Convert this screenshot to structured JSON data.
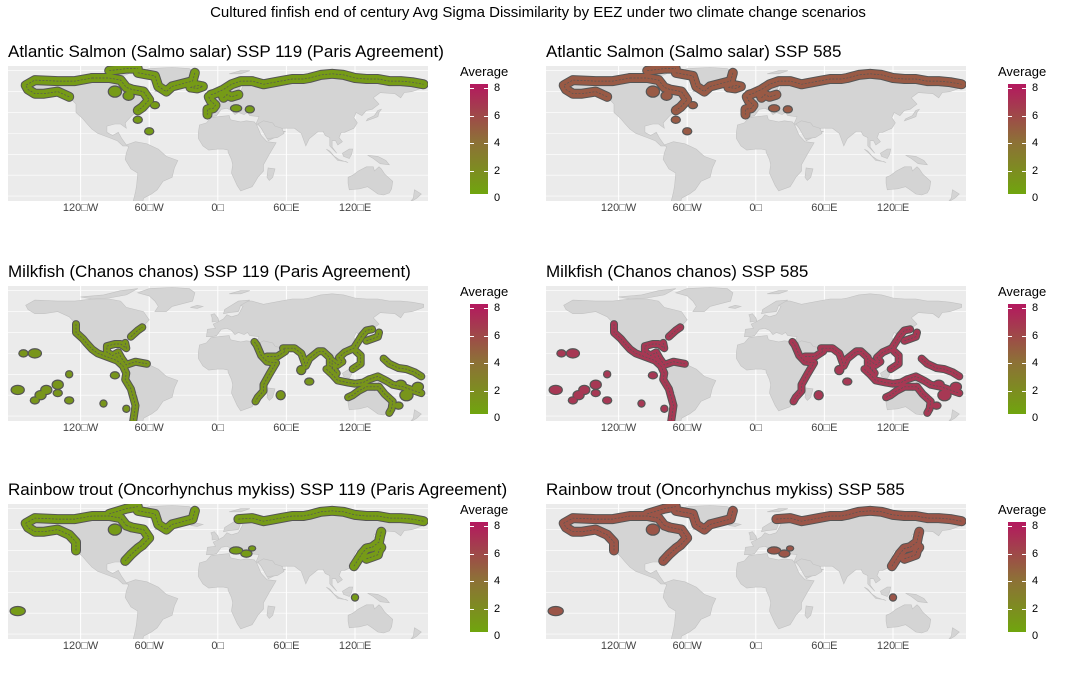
{
  "figure": {
    "title": "Cultured finfish end of century Avg Sigma Dissimilarity by EEZ under two climate change scenarios"
  },
  "axis_labels": [
    "120□W",
    "60□W",
    "0□",
    "60□E",
    "120□E"
  ],
  "legend": {
    "title": "Average",
    "ticks": [
      "8",
      "6",
      "4",
      "2",
      "0"
    ],
    "low_color": "#70a50e",
    "mid_color": "#8f6d39",
    "high_color": "#b4185f"
  },
  "colors": {
    "background": "#ebebeb",
    "land": "#d4d4d4",
    "border": "#555555",
    "gridline": "#ffffff"
  },
  "panels": [
    {
      "title": "Atlantic Salmon (Salmo salar) SSP 119 (Paris Agreement)",
      "region": "salmon",
      "level": 0.8
    },
    {
      "title": "Atlantic Salmon (Salmo salar) SSP 585",
      "region": "salmon",
      "level": 5.3
    },
    {
      "title": "Milkfish (Chanos chanos) SSP 119 (Paris Agreement)",
      "region": "milkfish",
      "level": 1.2
    },
    {
      "title": "Milkfish (Chanos chanos) SSP 585",
      "region": "milkfish",
      "level": 7.0
    },
    {
      "title": "Rainbow trout (Oncorhynchus mykiss) SSP 119 (Paris Agreement)",
      "region": "trout",
      "level": 0.8
    },
    {
      "title": "Rainbow trout (Oncorhynchus mykiss) SSP 585",
      "region": "trout",
      "level": 5.6
    }
  ]
}
